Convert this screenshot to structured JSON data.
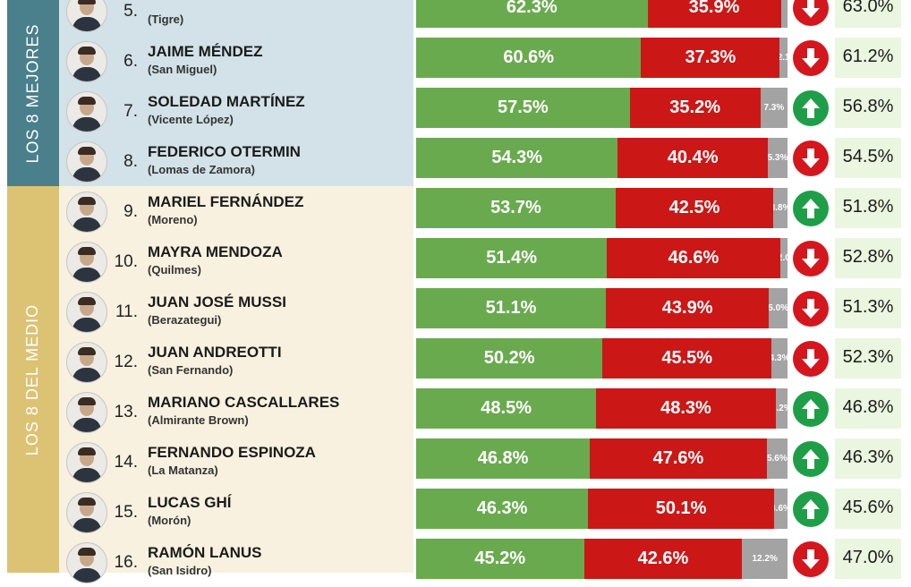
{
  "groups": [
    {
      "label": "LOS 8 MEJORES",
      "band_color": "#4a7f8c",
      "panel_color": "#d2e2e8"
    },
    {
      "label": "LOS 8 DEL MEDIO",
      "band_color": "#dcc273",
      "panel_color": "#f8f1e0"
    }
  ],
  "colors": {
    "positive": "#6aaa4f",
    "negative": "#cc1717",
    "ns_nc": "#a3a3a3",
    "up": "#1f9e48",
    "down": "#d4161d",
    "prev_bg": "#eaf6df"
  },
  "chart_data": {
    "type": "bar",
    "stacked": true,
    "orientation": "horizontal",
    "xlim": [
      0,
      100
    ],
    "unit": "%",
    "categories": [
      "5",
      "6",
      "7",
      "8",
      "9",
      "10",
      "11",
      "12",
      "13",
      "14",
      "15",
      "16"
    ],
    "rows": [
      {
        "rank": "5.",
        "name": "",
        "district": "(Tigre)",
        "group": 0,
        "positive": 62.3,
        "negative": 35.9,
        "ns_nc": 1.8,
        "positive_label": "62.3%",
        "negative_label": "35.9%",
        "ns_nc_label": "",
        "trend": "down",
        "previous": 63.0,
        "previous_label": "63.0%"
      },
      {
        "rank": "6.",
        "name": "JAIME MÉNDEZ",
        "district": "(San Miguel)",
        "group": 0,
        "positive": 60.6,
        "negative": 37.3,
        "ns_nc": 2.1,
        "positive_label": "60.6%",
        "negative_label": "37.3%",
        "ns_nc_label": "2.1",
        "trend": "down",
        "previous": 61.2,
        "previous_label": "61.2%"
      },
      {
        "rank": "7.",
        "name": "SOLEDAD MARTÍNEZ",
        "district": "(Vicente López)",
        "group": 0,
        "positive": 57.5,
        "negative": 35.2,
        "ns_nc": 7.3,
        "positive_label": "57.5%",
        "negative_label": "35.2%",
        "ns_nc_label": "7.3%",
        "trend": "up",
        "previous": 56.8,
        "previous_label": "56.8%"
      },
      {
        "rank": "8.",
        "name": "FEDERICO OTERMIN",
        "district": "(Lomas de Zamora)",
        "group": 0,
        "positive": 54.3,
        "negative": 40.4,
        "ns_nc": 5.3,
        "positive_label": "54.3%",
        "negative_label": "40.4%",
        "ns_nc_label": "5.3%",
        "trend": "down",
        "previous": 54.5,
        "previous_label": "54.5%"
      },
      {
        "rank": "9.",
        "name": "MARIEL FERNÁNDEZ",
        "district": "(Moreno)",
        "group": 1,
        "positive": 53.7,
        "negative": 42.5,
        "ns_nc": 3.8,
        "positive_label": "53.7%",
        "negative_label": "42.5%",
        "ns_nc_label": "3.8%",
        "trend": "up",
        "previous": 51.8,
        "previous_label": "51.8%"
      },
      {
        "rank": "10.",
        "name": "MAYRA MENDOZA",
        "district": "(Quilmes)",
        "group": 1,
        "positive": 51.4,
        "negative": 46.6,
        "ns_nc": 2.0,
        "positive_label": "51.4%",
        "negative_label": "46.6%",
        "ns_nc_label": "2.0",
        "trend": "down",
        "previous": 52.8,
        "previous_label": "52.8%"
      },
      {
        "rank": "11.",
        "name": "JUAN JOSÉ MUSSI",
        "district": "(Berazategui)",
        "group": 1,
        "positive": 51.1,
        "negative": 43.9,
        "ns_nc": 5.0,
        "positive_label": "51.1%",
        "negative_label": "43.9%",
        "ns_nc_label": "5.0%",
        "trend": "down",
        "previous": 51.3,
        "previous_label": "51.3%"
      },
      {
        "rank": "12.",
        "name": "JUAN ANDREOTTI",
        "district": "(San Fernando)",
        "group": 1,
        "positive": 50.2,
        "negative": 45.5,
        "ns_nc": 4.3,
        "positive_label": "50.2%",
        "negative_label": "45.5%",
        "ns_nc_label": "4.3%",
        "trend": "down",
        "previous": 52.3,
        "previous_label": "52.3%"
      },
      {
        "rank": "13.",
        "name": "MARIANO CASCALLARES",
        "district": "(Almirante Brown)",
        "group": 1,
        "positive": 48.5,
        "negative": 48.3,
        "ns_nc": 3.2,
        "positive_label": "48.5%",
        "negative_label": "48.3%",
        "ns_nc_label": "3.2%",
        "trend": "up",
        "previous": 46.8,
        "previous_label": "46.8%"
      },
      {
        "rank": "14.",
        "name": "FERNANDO ESPINOZA",
        "district": "(La Matanza)",
        "group": 1,
        "positive": 46.8,
        "negative": 47.6,
        "ns_nc": 5.6,
        "positive_label": "46.8%",
        "negative_label": "47.6%",
        "ns_nc_label": "5.6%",
        "trend": "up",
        "previous": 46.3,
        "previous_label": "46.3%"
      },
      {
        "rank": "15.",
        "name": "LUCAS GHÍ",
        "district": "(Morón)",
        "group": 1,
        "positive": 46.3,
        "negative": 50.1,
        "ns_nc": 3.6,
        "positive_label": "46.3%",
        "negative_label": "50.1%",
        "ns_nc_label": "3.6%",
        "trend": "up",
        "previous": 45.6,
        "previous_label": "45.6%"
      },
      {
        "rank": "16.",
        "name": "RAMÓN LANUS",
        "district": "(San Isidro)",
        "group": 1,
        "positive": 45.2,
        "negative": 42.6,
        "ns_nc": 12.2,
        "positive_label": "45.2%",
        "negative_label": "42.6%",
        "ns_nc_label": "12.2%",
        "trend": "down",
        "previous": 47.0,
        "previous_label": "47.0%"
      }
    ]
  }
}
